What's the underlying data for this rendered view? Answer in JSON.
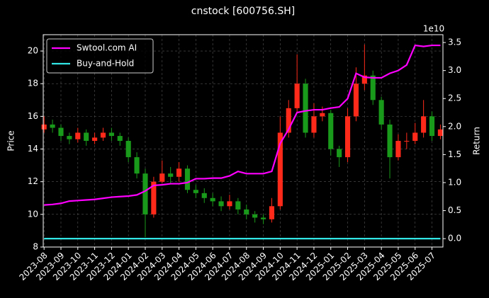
{
  "chart_data": {
    "type": "candlestick",
    "title": "cnstock [600756.SH]",
    "y_label": "Price",
    "y2_label": "Return",
    "y2_offset_label": "1e10",
    "x": [
      0,
      0.5,
      1,
      1.5,
      2,
      2.5,
      3,
      3.5,
      4,
      4.5,
      5,
      5.5,
      6,
      6.5,
      7,
      7.5,
      8,
      8.5,
      9,
      9.5,
      10,
      10.5,
      11,
      11.5,
      12,
      12.5,
      13,
      13.5,
      14,
      14.5,
      15,
      15.5,
      16,
      16.5,
      17,
      17.5,
      18,
      18.5,
      19,
      19.5,
      20,
      20.5,
      21,
      21.5,
      22,
      22.5,
      23,
      23.5
    ],
    "open": [
      15.2,
      15.5,
      15.3,
      14.8,
      14.6,
      15.0,
      14.5,
      14.7,
      15.0,
      14.8,
      14.5,
      13.5,
      12.5,
      10.0,
      12.0,
      12.5,
      12.3,
      12.8,
      11.5,
      11.3,
      11.0,
      10.8,
      10.5,
      10.8,
      10.3,
      10.0,
      9.8,
      9.7,
      10.5,
      15.0,
      16.5,
      18.0,
      15.0,
      16.0,
      16.2,
      14.0,
      13.5,
      16.0,
      18.0,
      18.5,
      17.0,
      15.5,
      13.5,
      14.5,
      14.5,
      15.0,
      16.0,
      14.8
    ],
    "high": [
      16.0,
      15.8,
      15.5,
      15.0,
      15.3,
      15.2,
      15.0,
      15.3,
      15.3,
      15.0,
      14.7,
      13.8,
      12.8,
      12.3,
      13.3,
      12.9,
      13.2,
      13.0,
      11.8,
      11.6,
      11.3,
      11.1,
      11.2,
      11.0,
      10.6,
      10.2,
      10.0,
      11.0,
      16.0,
      17.0,
      19.8,
      18.3,
      16.8,
      16.6,
      16.4,
      14.2,
      16.5,
      19.0,
      20.4,
      18.8,
      17.2,
      15.8,
      14.9,
      15.0,
      15.6,
      17.0,
      16.3,
      15.5
    ],
    "low": [
      15.0,
      15.0,
      14.5,
      14.3,
      14.4,
      14.2,
      14.3,
      14.5,
      14.5,
      14.2,
      13.2,
      12.2,
      8.6,
      9.8,
      11.9,
      11.9,
      12.0,
      11.3,
      11.0,
      10.7,
      10.5,
      10.2,
      10.3,
      10.0,
      9.7,
      9.5,
      9.4,
      9.5,
      10.3,
      14.7,
      16.2,
      14.7,
      14.7,
      15.7,
      13.6,
      12.9,
      13.2,
      15.7,
      17.6,
      16.7,
      15.2,
      12.2,
      13.3,
      14.0,
      14.3,
      14.7,
      14.5,
      14.6
    ],
    "close": [
      15.5,
      15.3,
      14.8,
      14.6,
      15.0,
      14.5,
      14.7,
      15.0,
      14.8,
      14.5,
      13.5,
      12.5,
      10.0,
      12.0,
      12.5,
      12.3,
      12.8,
      11.5,
      11.3,
      11.0,
      10.8,
      10.5,
      10.8,
      10.3,
      10.0,
      9.8,
      9.7,
      10.5,
      15.0,
      16.5,
      18.0,
      15.0,
      16.0,
      16.2,
      14.0,
      13.5,
      16.0,
      18.0,
      18.5,
      17.0,
      15.5,
      13.5,
      14.5,
      14.5,
      15.0,
      16.0,
      14.8,
      15.2
    ],
    "up_color": "#ff2a1a",
    "down_color": "#1a9a1a",
    "series": [
      {
        "name": "Swtool.com AI",
        "color": "#ff00ff",
        "axis": "y2",
        "values": [
          0.6,
          0.61,
          0.63,
          0.67,
          0.68,
          0.69,
          0.7,
          0.72,
          0.74,
          0.75,
          0.76,
          0.78,
          0.85,
          0.95,
          0.96,
          0.98,
          0.98,
          1.0,
          1.07,
          1.07,
          1.08,
          1.08,
          1.12,
          1.2,
          1.16,
          1.16,
          1.16,
          1.2,
          1.7,
          1.95,
          2.25,
          2.28,
          2.3,
          2.3,
          2.33,
          2.35,
          2.5,
          2.95,
          2.88,
          2.87,
          2.87,
          2.95,
          3.0,
          3.1,
          3.45,
          3.43,
          3.45,
          3.45
        ]
      },
      {
        "name": "Buy-and-Hold",
        "color": "#33e6e6",
        "axis": "y2",
        "values": [
          0,
          0,
          0,
          0,
          0,
          0,
          0,
          0,
          0,
          0,
          0,
          0,
          0,
          0,
          0,
          0,
          0,
          0,
          0,
          0,
          0,
          0,
          0,
          0,
          0,
          0,
          0,
          0,
          0,
          0,
          0,
          0,
          0,
          0,
          0,
          0,
          0,
          0,
          0,
          0,
          0,
          0,
          0,
          0,
          0,
          0,
          0,
          0
        ]
      }
    ],
    "xlim": [
      -0.05,
      23.65
    ],
    "xticks": [
      {
        "value": 0,
        "label": "2023-08"
      },
      {
        "value": 1,
        "label": "2023-09"
      },
      {
        "value": 2,
        "label": "2023-10"
      },
      {
        "value": 3,
        "label": "2023-11"
      },
      {
        "value": 4,
        "label": "2023-12"
      },
      {
        "value": 5,
        "label": "2024-01"
      },
      {
        "value": 6,
        "label": "2024-02"
      },
      {
        "value": 7,
        "label": "2024-03"
      },
      {
        "value": 8,
        "label": "2024-04"
      },
      {
        "value": 9,
        "label": "2024-05"
      },
      {
        "value": 10,
        "label": "2024-06"
      },
      {
        "value": 11,
        "label": "2024-07"
      },
      {
        "value": 12,
        "label": "2024-08"
      },
      {
        "value": 13,
        "label": "2024-09"
      },
      {
        "value": 14,
        "label": "2024-10"
      },
      {
        "value": 15,
        "label": "2024-11"
      },
      {
        "value": 16,
        "label": "2024-12"
      },
      {
        "value": 17,
        "label": "2025-01"
      },
      {
        "value": 18,
        "label": "2025-02"
      },
      {
        "value": 19,
        "label": "2025-03"
      },
      {
        "value": 20,
        "label": "2025-04"
      },
      {
        "value": 21,
        "label": "2025-05"
      },
      {
        "value": 22,
        "label": "2025-06"
      },
      {
        "value": 23,
        "label": "2025-07"
      }
    ],
    "ylim": [
      8,
      21
    ],
    "yticks": [
      8,
      10,
      12,
      14,
      16,
      18,
      20
    ],
    "y2lim": [
      -0.15,
      3.64
    ],
    "y2ticks": [
      {
        "value": 0,
        "label": "0.0"
      },
      {
        "value": 0.5,
        "label": "0.5"
      },
      {
        "value": 1,
        "label": "1.0"
      },
      {
        "value": 1.5,
        "label": "1.5"
      },
      {
        "value": 2,
        "label": "2.0"
      },
      {
        "value": 2.5,
        "label": "2.5"
      },
      {
        "value": 3,
        "label": "3.0"
      },
      {
        "value": 3.5,
        "label": "3.5"
      }
    ],
    "grid": true,
    "legend": "upper left"
  }
}
